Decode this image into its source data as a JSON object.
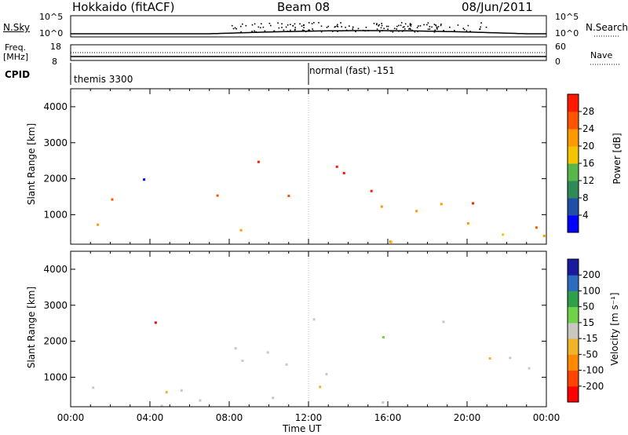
{
  "header": {
    "station": "Hokkaido (fitACF)",
    "beam": "Beam 08",
    "date": "08/Jun/2011"
  },
  "noise_panel": {
    "left_label": "N.Sky",
    "right_label": "N.Search",
    "left_ticks": [
      "10^5",
      "10^0"
    ],
    "right_ticks": [
      "10^5",
      "10^0"
    ]
  },
  "freq_panel": {
    "left_label": "Freq.",
    "left_unit": "[MHz]",
    "right_label": "Nave",
    "left_ticks": [
      "18",
      "8"
    ],
    "right_ticks": [
      "60",
      "0"
    ]
  },
  "cpid_panel": {
    "label": "CPID",
    "segments": [
      "themis 3300",
      "normal (fast) -151"
    ]
  },
  "chart_data": [
    {
      "type": "heatmap",
      "name": "power",
      "ylabel": "Slant Range [km]",
      "xlabel": "",
      "x_range_hours": [
        0,
        24
      ],
      "ylim": [
        180,
        4500
      ],
      "yticks": [
        "1000",
        "2000",
        "3000",
        "4000"
      ],
      "colorbar_label": "Power [dB]",
      "colorbar_ticks": [
        "4",
        "8",
        "12",
        "16",
        "20",
        "24",
        "28"
      ],
      "colorbar_colors": [
        "#0000ff",
        "#1f4fa6",
        "#2e8b57",
        "#58b74a",
        "#f4c400",
        "#ff9900",
        "#ff5500",
        "#ff1a00"
      ]
    },
    {
      "type": "heatmap",
      "name": "velocity",
      "ylabel": "Slant Range [km]",
      "xlabel": "Time UT",
      "x_range_hours": [
        0,
        24
      ],
      "ylim": [
        180,
        4500
      ],
      "yticks": [
        "1000",
        "2000",
        "3000",
        "4000"
      ],
      "xticks": [
        "00:00",
        "04:00",
        "08:00",
        "12:00",
        "16:00",
        "20:00",
        "00:00"
      ],
      "colorbar_label": "Velocity [m s⁻¹]",
      "colorbar_ticks": [
        "200",
        "100",
        "50",
        "15",
        "-15",
        "-50",
        "-100",
        "-200"
      ],
      "colorbar_colors": [
        "#1a1aa0",
        "#2d6bbf",
        "#2fa04a",
        "#6fd24a",
        "#c8c8c0",
        "#f0b428",
        "#ff8800",
        "#ff4400",
        "#ff0000"
      ]
    }
  ]
}
